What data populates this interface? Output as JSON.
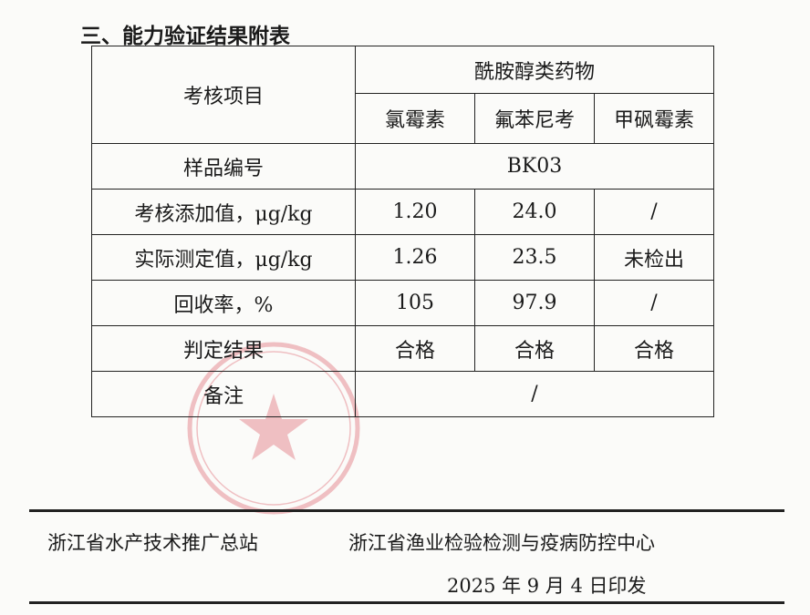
{
  "section_title": "三、能力验证结果附表",
  "table": {
    "item_header": "考核项目",
    "group_header": "酰胺醇类药物",
    "columns": [
      "氯霉素",
      "氟苯尼考",
      "甲砜霉素"
    ],
    "sample": {
      "label": "样品编号",
      "value": "BK03"
    },
    "rows": [
      {
        "label": "考核添加值，μg/kg",
        "values": [
          "1.20",
          "24.0",
          "/"
        ]
      },
      {
        "label": "实际测定值，μg/kg",
        "values": [
          "1.26",
          "23.5",
          "未检出"
        ]
      },
      {
        "label": "回收率，%",
        "values": [
          "105",
          "97.9",
          "/"
        ]
      },
      {
        "label": "判定结果",
        "values": [
          "合格",
          "合格",
          "合格"
        ]
      }
    ],
    "remark": {
      "label": "备注",
      "value": "/"
    }
  },
  "footer": {
    "org1": "浙江省水产技术推广总站",
    "org2": "浙江省渔业检验检测与疫病防控中心",
    "date": "2025 年 9 月 4 日印发"
  },
  "colors": {
    "stamp": "#d9535f"
  }
}
